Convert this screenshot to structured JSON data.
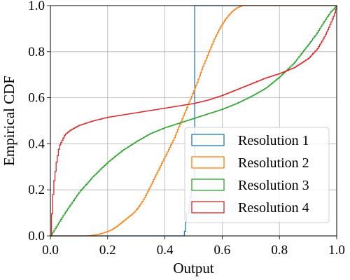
{
  "chart_data": {
    "type": "line",
    "step": true,
    "xlabel": "Output",
    "ylabel": "Empirical CDF",
    "xlim": [
      0.0,
      1.0
    ],
    "ylim": [
      0.0,
      1.0
    ],
    "x_ticks": [
      "0.0",
      "0.2",
      "0.4",
      "0.6",
      "0.8",
      "1.0"
    ],
    "y_ticks": [
      "0.0",
      "0.2",
      "0.4",
      "0.6",
      "0.8",
      "1.0"
    ],
    "grid": true,
    "legend_position": "lower-right",
    "series": [
      {
        "name": "Resolution 1",
        "color": "#1f77b4",
        "x": [
          0.0,
          0.465,
          0.465,
          0.47,
          0.47,
          0.475,
          0.475,
          0.48,
          0.48,
          0.485,
          0.485,
          0.49,
          0.49,
          0.495,
          0.495,
          0.5,
          0.5,
          1.0
        ],
        "y": [
          0.0,
          0.0,
          0.02,
          0.02,
          0.06,
          0.06,
          0.1,
          0.1,
          0.13,
          0.13,
          0.17,
          0.17,
          0.2,
          0.2,
          0.23,
          0.23,
          1.0,
          1.0
        ]
      },
      {
        "name": "Resolution 2",
        "color": "#ff7f0e",
        "x": [
          0.0,
          0.12,
          0.15,
          0.17,
          0.19,
          0.21,
          0.23,
          0.25,
          0.27,
          0.29,
          0.31,
          0.33,
          0.35,
          0.37,
          0.39,
          0.41,
          0.43,
          0.45,
          0.47,
          0.49,
          0.51,
          0.53,
          0.55,
          0.57,
          0.59,
          0.61,
          0.63,
          0.65,
          0.67,
          1.0
        ],
        "y": [
          0.0,
          0.0,
          0.003,
          0.008,
          0.015,
          0.025,
          0.04,
          0.06,
          0.08,
          0.1,
          0.13,
          0.17,
          0.22,
          0.27,
          0.32,
          0.37,
          0.42,
          0.48,
          0.54,
          0.6,
          0.66,
          0.73,
          0.79,
          0.85,
          0.9,
          0.94,
          0.97,
          0.99,
          1.0,
          1.0
        ]
      },
      {
        "name": "Resolution 3",
        "color": "#2ca02c",
        "x": [
          0.0,
          0.02,
          0.05,
          0.1,
          0.15,
          0.2,
          0.25,
          0.3,
          0.35,
          0.4,
          0.45,
          0.5,
          0.55,
          0.6,
          0.65,
          0.7,
          0.75,
          0.8,
          0.85,
          0.9,
          0.93,
          0.96,
          0.98,
          1.0
        ],
        "y": [
          0.0,
          0.04,
          0.1,
          0.19,
          0.26,
          0.32,
          0.37,
          0.41,
          0.445,
          0.47,
          0.49,
          0.51,
          0.53,
          0.55,
          0.575,
          0.605,
          0.64,
          0.69,
          0.75,
          0.83,
          0.88,
          0.94,
          0.975,
          1.0
        ]
      },
      {
        "name": "Resolution 4",
        "color": "#d62728",
        "x": [
          0.0,
          0.005,
          0.01,
          0.02,
          0.03,
          0.05,
          0.07,
          0.1,
          0.15,
          0.2,
          0.25,
          0.3,
          0.35,
          0.4,
          0.45,
          0.5,
          0.55,
          0.6,
          0.65,
          0.7,
          0.75,
          0.8,
          0.85,
          0.9,
          0.93,
          0.95,
          0.97,
          0.99,
          1.0
        ],
        "y": [
          0.0,
          0.12,
          0.22,
          0.32,
          0.39,
          0.44,
          0.46,
          0.48,
          0.5,
          0.515,
          0.525,
          0.535,
          0.545,
          0.555,
          0.565,
          0.575,
          0.59,
          0.61,
          0.635,
          0.66,
          0.685,
          0.705,
          0.73,
          0.77,
          0.81,
          0.85,
          0.9,
          0.96,
          1.0
        ]
      }
    ]
  }
}
